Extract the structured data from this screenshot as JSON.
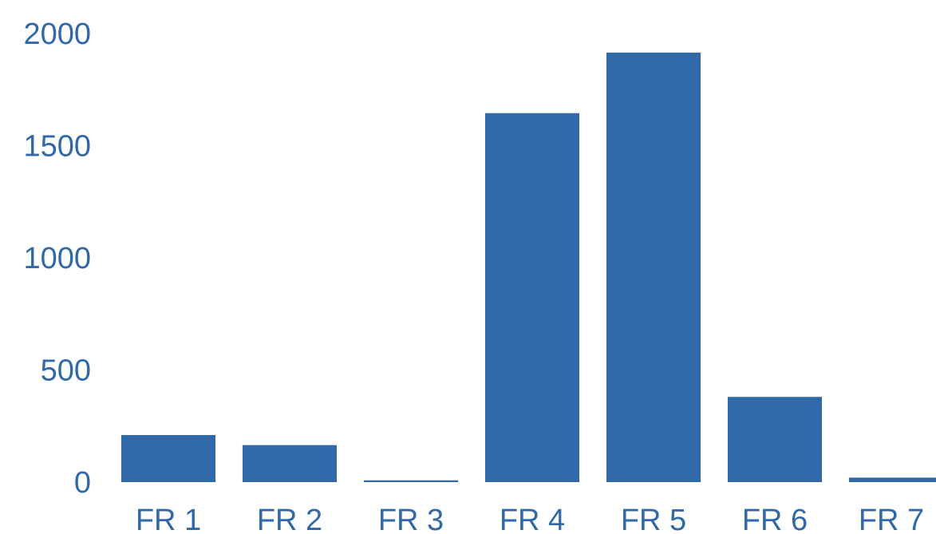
{
  "chart_data": {
    "type": "bar",
    "title": "",
    "xlabel": "",
    "ylabel": "",
    "categories": [
      "FR 1",
      "FR 2",
      "FR 3",
      "FR 4",
      "FR 5",
      "FR 6",
      "FR 7"
    ],
    "values": [
      210,
      165,
      8,
      1645,
      1915,
      380,
      20
    ],
    "ylim": [
      0,
      2000
    ],
    "yticks": [
      0,
      500,
      1000,
      1500,
      2000
    ],
    "ytick_labels": [
      "0",
      "500",
      "1000",
      "1500",
      "2000"
    ],
    "grid": false,
    "legend": "none",
    "colors": {
      "bar": "#3169a8",
      "text": "#3169a8"
    }
  }
}
